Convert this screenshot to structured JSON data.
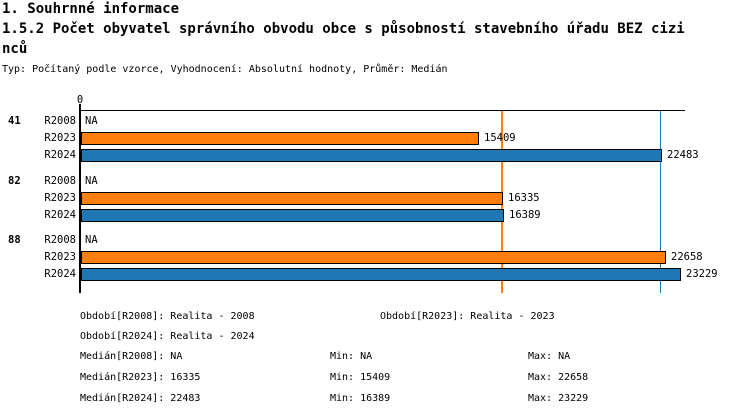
{
  "header": {
    "title": "1. Souhrnné informace",
    "subtitle": "1.5.2 Počet obyvatel správního obvodu obce s působností stavebního úřadu BEZ cizinců",
    "meta": "Typ: Počítaný podle vzorce, Vyhodnocení: Absolutní hodnoty, Průměr: Medián"
  },
  "chart_data": {
    "type": "bar",
    "orientation": "horizontal",
    "title": "1.5.2 Počet obyvatel správního obvodu obce s působností stavebního úřadu BEZ cizinců",
    "axis_zero_label": "0",
    "xlim": [
      0,
      23430
    ],
    "grid": false,
    "na_text": "NA",
    "series": [
      {
        "id": "R2008",
        "color": null
      },
      {
        "id": "R2023",
        "color": "#ff7f0e"
      },
      {
        "id": "R2024",
        "color": "#1f77b4"
      }
    ],
    "groups": [
      {
        "label": "41",
        "rows": [
          {
            "series": "R2008",
            "value": null,
            "value_label": "NA"
          },
          {
            "series": "R2023",
            "value": 15409,
            "value_label": "15409"
          },
          {
            "series": "R2024",
            "value": 22483,
            "value_label": "22483"
          }
        ]
      },
      {
        "label": "82",
        "rows": [
          {
            "series": "R2008",
            "value": null,
            "value_label": "NA"
          },
          {
            "series": "R2023",
            "value": 16335,
            "value_label": "16335"
          },
          {
            "series": "R2024",
            "value": 16389,
            "value_label": "16389"
          }
        ]
      },
      {
        "label": "88",
        "rows": [
          {
            "series": "R2008",
            "value": null,
            "value_label": "NA"
          },
          {
            "series": "R2023",
            "value": 22658,
            "value_label": "22658"
          },
          {
            "series": "R2024",
            "value": 23229,
            "value_label": "23229"
          }
        ]
      }
    ],
    "reference_lines": [
      {
        "name": "median-R2023",
        "value": 16335,
        "color": "#ff7f0e"
      },
      {
        "name": "median-R2024",
        "value": 22483,
        "color": "#1f77b4"
      }
    ]
  },
  "legend": {
    "period_rows": [
      [
        "Období[R2008]: Realita - 2008",
        "Období[R2023]: Realita - 2023"
      ],
      [
        "Období[R2024]: Realita - 2024"
      ]
    ],
    "stats_rows": [
      [
        "Medián[R2008]: NA",
        "Min: NA",
        "Max: NA"
      ],
      [
        "Medián[R2023]: 16335",
        "Min: 15409",
        "Max: 22658"
      ],
      [
        "Medián[R2024]: 22483",
        "Min: 16389",
        "Max: 23229"
      ]
    ]
  }
}
